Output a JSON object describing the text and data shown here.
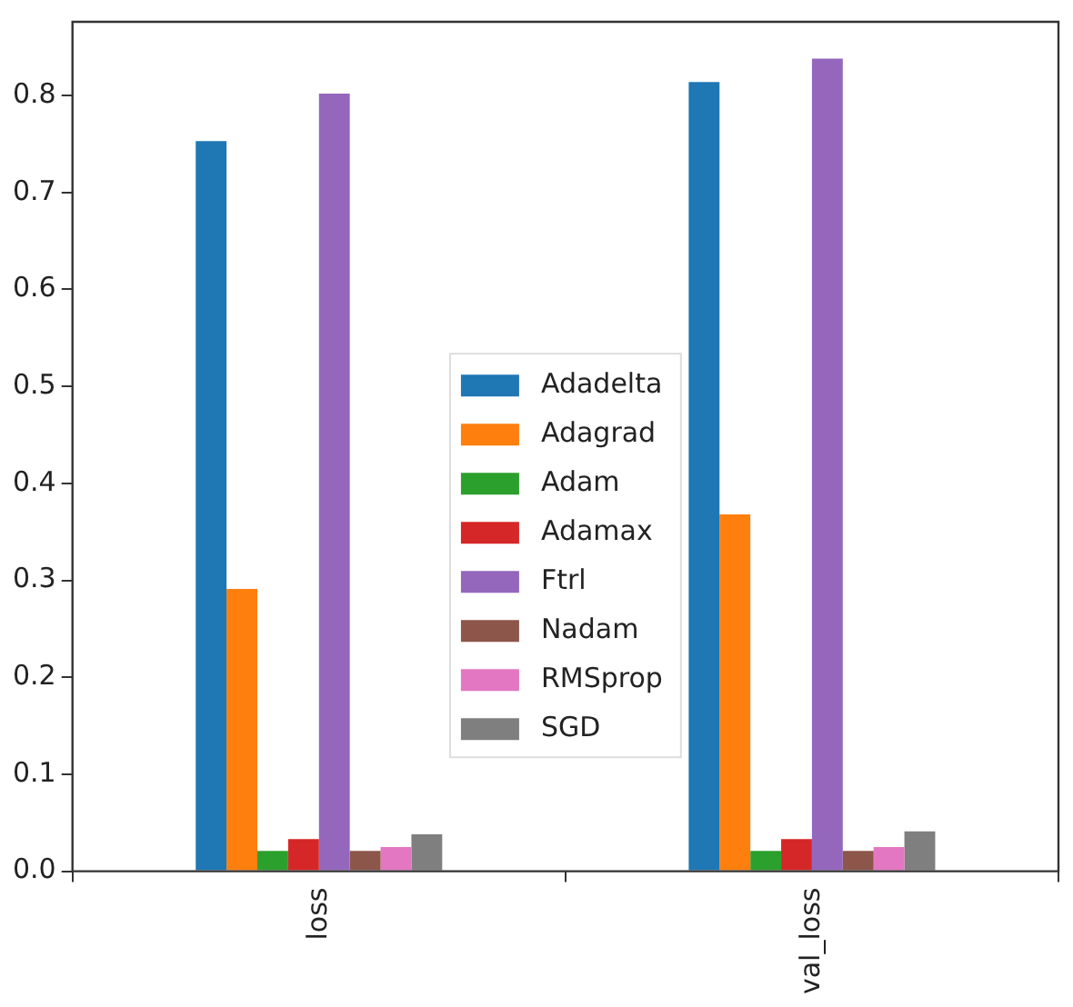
{
  "chart_data": {
    "type": "bar",
    "categories": [
      "loss",
      "val_loss"
    ],
    "series": [
      {
        "name": "Adadelta",
        "color": "#1f77b4",
        "values": [
          0.753,
          0.814
        ]
      },
      {
        "name": "Adagrad",
        "color": "#ff7f0e",
        "values": [
          0.291,
          0.368
        ]
      },
      {
        "name": "Adam",
        "color": "#2ca02c",
        "values": [
          0.021,
          0.021
        ]
      },
      {
        "name": "Adamax",
        "color": "#d62728",
        "values": [
          0.033,
          0.033
        ]
      },
      {
        "name": "Ftrl",
        "color": "#9467bd",
        "values": [
          0.802,
          0.838
        ]
      },
      {
        "name": "Nadam",
        "color": "#8c564b",
        "values": [
          0.021,
          0.021
        ]
      },
      {
        "name": "RMSprop",
        "color": "#e377c2",
        "values": [
          0.025,
          0.025
        ]
      },
      {
        "name": "SGD",
        "color": "#7f7f7f",
        "values": [
          0.038,
          0.041
        ]
      }
    ],
    "ylim": [
      0,
      0.876
    ],
    "yticks": [
      {
        "value": 0,
        "label": "0.0"
      },
      0.1,
      0.2,
      0.3,
      0.4,
      0.5,
      0.6,
      0.7,
      0.8
    ],
    "grid": false,
    "legend": "center"
  }
}
